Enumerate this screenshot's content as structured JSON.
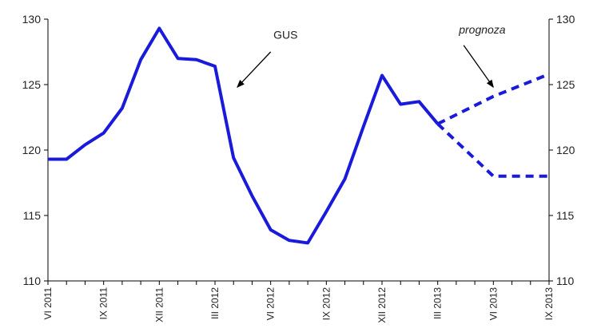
{
  "chart_data": {
    "type": "line",
    "ylim": [
      110,
      130
    ],
    "yticks": [
      110,
      115,
      120,
      125,
      130
    ],
    "x_tick_labels": [
      "VI 2011",
      "IX 2011",
      "XII 2011",
      "III 2012",
      "VI 2012",
      "IX 2012",
      "XII 2012",
      "III 2013",
      "VI 2013",
      "IX 2013"
    ],
    "x_tick_positions": [
      0,
      3,
      6,
      9,
      12,
      15,
      18,
      21,
      24,
      27
    ],
    "x_count": 27,
    "grid": false,
    "series": [
      {
        "name": "GUS",
        "color": "#1a1adb",
        "style": "solid",
        "points": [
          [
            0,
            119.3
          ],
          [
            1,
            119.3
          ],
          [
            2,
            120.4
          ],
          [
            3,
            121.3
          ],
          [
            4,
            123.2
          ],
          [
            5,
            126.9
          ],
          [
            6,
            129.3
          ],
          [
            7,
            127.0
          ],
          [
            8,
            126.9
          ],
          [
            9,
            126.4
          ],
          [
            10,
            119.4
          ],
          [
            11,
            116.5
          ],
          [
            12,
            113.9
          ],
          [
            13,
            113.1
          ],
          [
            14,
            112.9
          ],
          [
            15,
            115.3
          ],
          [
            16,
            117.8
          ],
          [
            17,
            121.8
          ],
          [
            18,
            125.7
          ],
          [
            19,
            123.5
          ],
          [
            20,
            123.7
          ],
          [
            21,
            122.0
          ]
        ]
      },
      {
        "name": "prognoza",
        "color": "#1a1adb",
        "style": "dashed",
        "points": [
          [
            21,
            122.0
          ],
          [
            24,
            124.1
          ],
          [
            27,
            125.8
          ]
        ]
      },
      {
        "name": "prognoza",
        "color": "#1a1adb",
        "style": "dashed",
        "points": [
          [
            21,
            122.0
          ],
          [
            24,
            118.0
          ],
          [
            27,
            118.0
          ]
        ]
      }
    ],
    "annotations": [
      {
        "id": "gus",
        "text": "GUS",
        "italic": false,
        "text_at": [
          12.8,
          128.5
        ],
        "arrow_from": [
          12.0,
          127.5
        ],
        "arrow_to": [
          10.2,
          124.8
        ]
      },
      {
        "id": "prognoza",
        "text": "prognoza",
        "italic": true,
        "text_at": [
          23.4,
          128.9
        ],
        "arrow_from": [
          22.4,
          128.0
        ],
        "arrow_to": [
          24.0,
          124.8
        ]
      }
    ]
  }
}
